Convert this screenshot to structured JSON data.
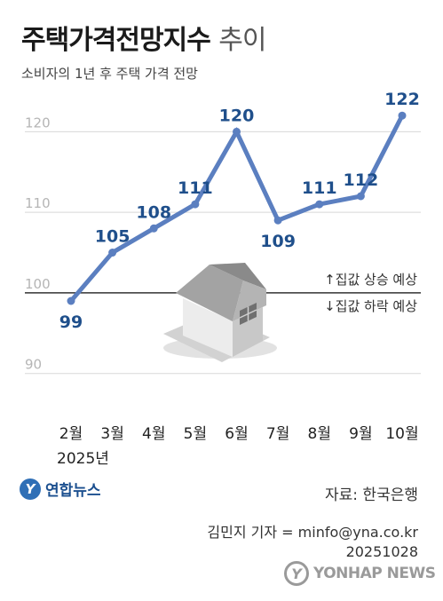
{
  "title_main": "주택가격전망지수",
  "title_suffix": "추이",
  "subtitle": "소비자의 1년 후 주택 가격 전망",
  "year_label": "2025년",
  "annotations": {
    "rise": "↑집값 상승 예상",
    "fall": "↓집값 하락 예상"
  },
  "source": "자료: 한국은행",
  "byline": "김민지 기자 = minfo@yna.co.kr",
  "date": "20251028",
  "logo": {
    "mark": "Y",
    "text": "연합뉴스"
  },
  "watermark": {
    "mark": "Y",
    "text": "YONHAP NEWS"
  },
  "colors": {
    "line": "#5b7fc0",
    "label": "#1f4f8b",
    "grid": "#d8d8d8",
    "baseline": "#333333"
  },
  "chart_data": {
    "type": "line",
    "categories": [
      "2월",
      "3월",
      "4월",
      "5월",
      "6월",
      "7월",
      "8월",
      "9월",
      "10월"
    ],
    "values": [
      99,
      105,
      108,
      111,
      120,
      109,
      111,
      112,
      122
    ],
    "yticks": [
      90,
      100,
      110,
      120
    ],
    "ylim": [
      86,
      125
    ],
    "baseline": 100,
    "grid": true
  }
}
